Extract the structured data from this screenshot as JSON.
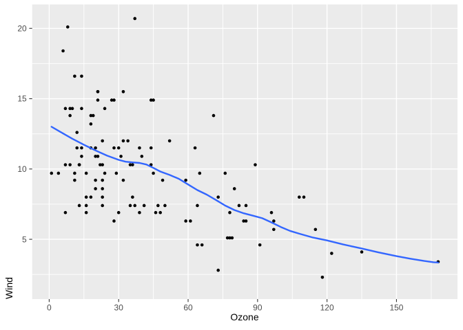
{
  "chart_data": {
    "type": "scatter",
    "title": "",
    "xlabel": "Ozone",
    "ylabel": "Wind",
    "x_ticks": [
      0,
      30,
      60,
      90,
      120,
      150
    ],
    "x_minor_ticks": [
      15,
      45,
      75,
      105,
      135,
      165
    ],
    "y_ticks": [
      5,
      10,
      15,
      20
    ],
    "y_minor_ticks": [
      2.5,
      7.5,
      12.5,
      17.5
    ],
    "xlim": [
      -7.35,
      176.35
    ],
    "ylim": [
      0.75,
      21.7
    ],
    "grid": "major-and-minor",
    "legend": "none",
    "style": {
      "figure_bg": "#FFFFFF",
      "panel_bg": "#EBEBEB",
      "grid_color": "#FFFFFF",
      "point_color": "#000000",
      "smooth_color": "#3366FF",
      "axis_text_color": "#4D4D4D",
      "axis_title_color": "#000000",
      "tick_color": "#333333"
    },
    "series": [
      {
        "name": "observations",
        "type": "scatter",
        "color": "#000000",
        "data": [
          [
            41,
            7.4
          ],
          [
            36,
            8
          ],
          [
            12,
            12.6
          ],
          [
            18,
            11.5
          ],
          [
            28,
            14.9
          ],
          [
            23,
            8.6
          ],
          [
            19,
            13.8
          ],
          [
            8,
            20.1
          ],
          [
            7,
            6.9
          ],
          [
            16,
            9.7
          ],
          [
            11,
            9.2
          ],
          [
            14,
            10.9
          ],
          [
            18,
            13.2
          ],
          [
            14,
            11.5
          ],
          [
            34,
            12
          ],
          [
            6,
            18.4
          ],
          [
            30,
            11.5
          ],
          [
            11,
            9.7
          ],
          [
            1,
            9.7
          ],
          [
            11,
            16.6
          ],
          [
            4,
            9.7
          ],
          [
            32,
            12
          ],
          [
            23,
            12
          ],
          [
            45,
            14.9
          ],
          [
            115,
            5.7
          ],
          [
            37,
            7.4
          ],
          [
            29,
            9.7
          ],
          [
            71,
            13.8
          ],
          [
            39,
            11.5
          ],
          [
            23,
            8
          ],
          [
            21,
            14.9
          ],
          [
            37,
            20.7
          ],
          [
            20,
            9.2
          ],
          [
            12,
            11.5
          ],
          [
            13,
            10.3
          ],
          [
            135,
            4.1
          ],
          [
            49,
            9.2
          ],
          [
            32,
            9.2
          ],
          [
            64,
            4.6
          ],
          [
            40,
            10.9
          ],
          [
            77,
            5.1
          ],
          [
            97,
            6.3
          ],
          [
            97,
            5.7
          ],
          [
            85,
            7.4
          ],
          [
            10,
            14.3
          ],
          [
            27,
            14.9
          ],
          [
            7,
            14.3
          ],
          [
            48,
            6.9
          ],
          [
            35,
            10.3
          ],
          [
            61,
            6.3
          ],
          [
            79,
            5.1
          ],
          [
            63,
            11.5
          ],
          [
            16,
            6.9
          ],
          [
            80,
            8.6
          ],
          [
            108,
            8
          ],
          [
            20,
            8.6
          ],
          [
            52,
            12
          ],
          [
            82,
            7.4
          ],
          [
            50,
            7.4
          ],
          [
            64,
            7.4
          ],
          [
            59,
            9.2
          ],
          [
            39,
            6.9
          ],
          [
            9,
            13.8
          ],
          [
            16,
            7.4
          ],
          [
            78,
            6.9
          ],
          [
            35,
            7.4
          ],
          [
            66,
            4.6
          ],
          [
            122,
            4
          ],
          [
            89,
            10.3
          ],
          [
            110,
            8
          ],
          [
            44,
            11.5
          ],
          [
            28,
            11.5
          ],
          [
            65,
            9.7
          ],
          [
            22,
            10.3
          ],
          [
            59,
            6.3
          ],
          [
            23,
            7.4
          ],
          [
            31,
            10.9
          ],
          [
            44,
            10.3
          ],
          [
            21,
            15.5
          ],
          [
            9,
            14.3
          ],
          [
            45,
            9.7
          ],
          [
            168,
            3.4
          ],
          [
            73,
            8
          ],
          [
            76,
            9.7
          ],
          [
            118,
            2.3
          ],
          [
            84,
            6.3
          ],
          [
            85,
            6.3
          ],
          [
            96,
            6.9
          ],
          [
            78,
            5.1
          ],
          [
            73,
            2.8
          ],
          [
            91,
            4.6
          ],
          [
            47,
            7.4
          ],
          [
            32,
            15.5
          ],
          [
            20,
            10.9
          ],
          [
            23,
            10.3
          ],
          [
            21,
            10.9
          ],
          [
            24,
            9.7
          ],
          [
            44,
            14.9
          ],
          [
            21,
            15.5
          ],
          [
            28,
            6.3
          ],
          [
            9,
            10.3
          ],
          [
            13,
            7.4
          ],
          [
            46,
            6.9
          ],
          [
            18,
            13.8
          ],
          [
            13,
            10.3
          ],
          [
            24,
            14.3
          ],
          [
            16,
            8
          ],
          [
            13,
            10.3
          ],
          [
            23,
            9.2
          ],
          [
            36,
            10.3
          ],
          [
            7,
            10.3
          ],
          [
            14,
            16.6
          ],
          [
            30,
            6.9
          ],
          [
            14,
            14.3
          ],
          [
            18,
            8
          ],
          [
            20,
            11.5
          ]
        ]
      },
      {
        "name": "loess-smooth",
        "type": "line",
        "color": "#3366FF",
        "data": [
          [
            1,
            13.0
          ],
          [
            5,
            12.62
          ],
          [
            10,
            12.15
          ],
          [
            15,
            11.72
          ],
          [
            20,
            11.32
          ],
          [
            25,
            10.95
          ],
          [
            30,
            10.65
          ],
          [
            33,
            10.52
          ],
          [
            36,
            10.47
          ],
          [
            39,
            10.43
          ],
          [
            42,
            10.32
          ],
          [
            45,
            10.08
          ],
          [
            48,
            9.82
          ],
          [
            52,
            9.58
          ],
          [
            56,
            9.3
          ],
          [
            60,
            8.9
          ],
          [
            64,
            8.5
          ],
          [
            68,
            8.18
          ],
          [
            72,
            7.8
          ],
          [
            76,
            7.4
          ],
          [
            80,
            7.08
          ],
          [
            84,
            6.85
          ],
          [
            88,
            6.68
          ],
          [
            92,
            6.5
          ],
          [
            96,
            6.2
          ],
          [
            100,
            5.88
          ],
          [
            104,
            5.6
          ],
          [
            108,
            5.4
          ],
          [
            114,
            5.12
          ],
          [
            120,
            4.92
          ],
          [
            127,
            4.63
          ],
          [
            135,
            4.35
          ],
          [
            142,
            4.08
          ],
          [
            150,
            3.8
          ],
          [
            156,
            3.62
          ],
          [
            162,
            3.46
          ],
          [
            166,
            3.37
          ],
          [
            168,
            3.35
          ]
        ]
      }
    ]
  }
}
